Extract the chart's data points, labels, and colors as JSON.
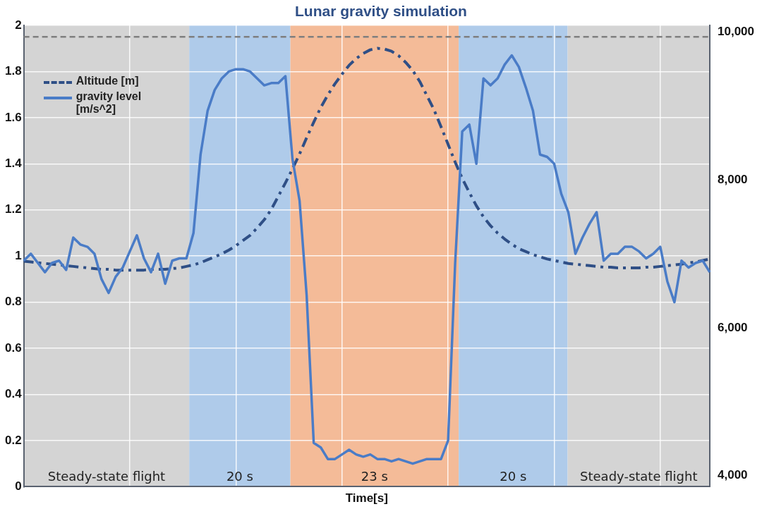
{
  "chart_data": {
    "type": "line",
    "title": "Lunar gravity simulation",
    "xlabel": "Time[s]",
    "categories": [
      null,
      null,
      null,
      null,
      null,
      null,
      null,
      null,
      null,
      null,
      null,
      null,
      null,
      null,
      null,
      null,
      null,
      null,
      null,
      null,
      null,
      null,
      null,
      null,
      null,
      null,
      null,
      null,
      null,
      null,
      null,
      null,
      null,
      null,
      null,
      null,
      null,
      null,
      null,
      null,
      null,
      null,
      null,
      null,
      null,
      null,
      null,
      null,
      null,
      null,
      null,
      null,
      null,
      null,
      null,
      null,
      null,
      null,
      null,
      null,
      null,
      null,
      null,
      null,
      null,
      null,
      null,
      null,
      null,
      null,
      null,
      null,
      null,
      null,
      null,
      null,
      null,
      null,
      null,
      null,
      null,
      null,
      null,
      null,
      null,
      null,
      null,
      null,
      null,
      null,
      null,
      null,
      null,
      null,
      null,
      null,
      null,
      null
    ],
    "series": [
      {
        "name": "Altitude [m]",
        "color": "#2f4f86",
        "axis": "y2",
        "line_style": "dashed",
        "values": [
          6900,
          6890,
          6880,
          6870,
          6860,
          6850,
          6840,
          6830,
          6820,
          6810,
          6800,
          6790,
          6790,
          6780,
          6780,
          6780,
          6780,
          6780,
          6790,
          6790,
          6790,
          6800,
          6810,
          6830,
          6850,
          6880,
          6920,
          6960,
          7000,
          7050,
          7110,
          7180,
          7250,
          7350,
          7460,
          7600,
          7780,
          7960,
          8150,
          8350,
          8570,
          8780,
          8980,
          9150,
          9300,
          9430,
          9550,
          9640,
          9710,
          9760,
          9780,
          9770,
          9740,
          9680,
          9590,
          9480,
          9330,
          9140,
          8950,
          8720,
          8480,
          8240,
          8020,
          7830,
          7650,
          7500,
          7380,
          7280,
          7200,
          7130,
          7070,
          7030,
          6990,
          6960,
          6930,
          6910,
          6890,
          6870,
          6860,
          6850,
          6840,
          6830,
          6820,
          6820,
          6810,
          6810,
          6810,
          6810,
          6820,
          6820,
          6830,
          6840,
          6850,
          6860,
          6880,
          6890,
          6910,
          6930
        ]
      },
      {
        "name": "gravity level [m/s^2]",
        "color": "#4a7cc7",
        "line_style": "solid",
        "values": [
          0.98,
          1.01,
          0.97,
          0.93,
          0.97,
          0.98,
          0.94,
          1.08,
          1.05,
          1.04,
          1.01,
          0.9,
          0.84,
          0.91,
          0.95,
          1.02,
          1.09,
          0.99,
          0.93,
          1.01,
          0.88,
          0.98,
          0.99,
          0.99,
          1.1,
          1.44,
          1.63,
          1.72,
          1.77,
          1.8,
          1.81,
          1.81,
          1.8,
          1.77,
          1.74,
          1.75,
          1.75,
          1.78,
          1.42,
          1.24,
          0.83,
          0.19,
          0.17,
          0.12,
          0.12,
          0.14,
          0.16,
          0.14,
          0.13,
          0.14,
          0.12,
          0.12,
          0.11,
          0.12,
          0.11,
          0.1,
          0.11,
          0.12,
          0.12,
          0.12,
          0.2,
          0.97,
          1.54,
          1.57,
          1.4,
          1.77,
          1.74,
          1.77,
          1.83,
          1.87,
          1.82,
          1.73,
          1.63,
          1.44,
          1.43,
          1.4,
          1.27,
          1.19,
          1.01,
          1.08,
          1.14,
          1.19,
          0.98,
          1.01,
          1.01,
          1.04,
          1.04,
          1.02,
          0.99,
          1.01,
          1.04,
          0.89,
          0.8,
          0.98,
          0.95,
          0.97,
          0.98,
          0.93
        ]
      }
    ],
    "ylim": [
      0,
      2
    ],
    "yticks": [
      0,
      0.2,
      0.4,
      0.6,
      0.8,
      1,
      1.2,
      1.4,
      1.6,
      1.8,
      2
    ],
    "y2lim": [
      3850,
      10090
    ],
    "y2ticks": [
      {
        "value": 4000,
        "label": "4,000"
      },
      {
        "value": 6000,
        "label": "6,000"
      },
      {
        "value": 8000,
        "label": "8,000"
      },
      {
        "value": 10000,
        "label": "10,000"
      }
    ],
    "annotations": [
      "Steady-state flight",
      "20 s",
      "23 s",
      "20 s",
      "Steady-state flight"
    ],
    "ref_lines": [
      {
        "axis": "y",
        "value": 1.95,
        "color": "#7f7f7f",
        "line_style": "dashed"
      }
    ],
    "grid": true,
    "legend": "top left",
    "marker": "none"
  }
}
